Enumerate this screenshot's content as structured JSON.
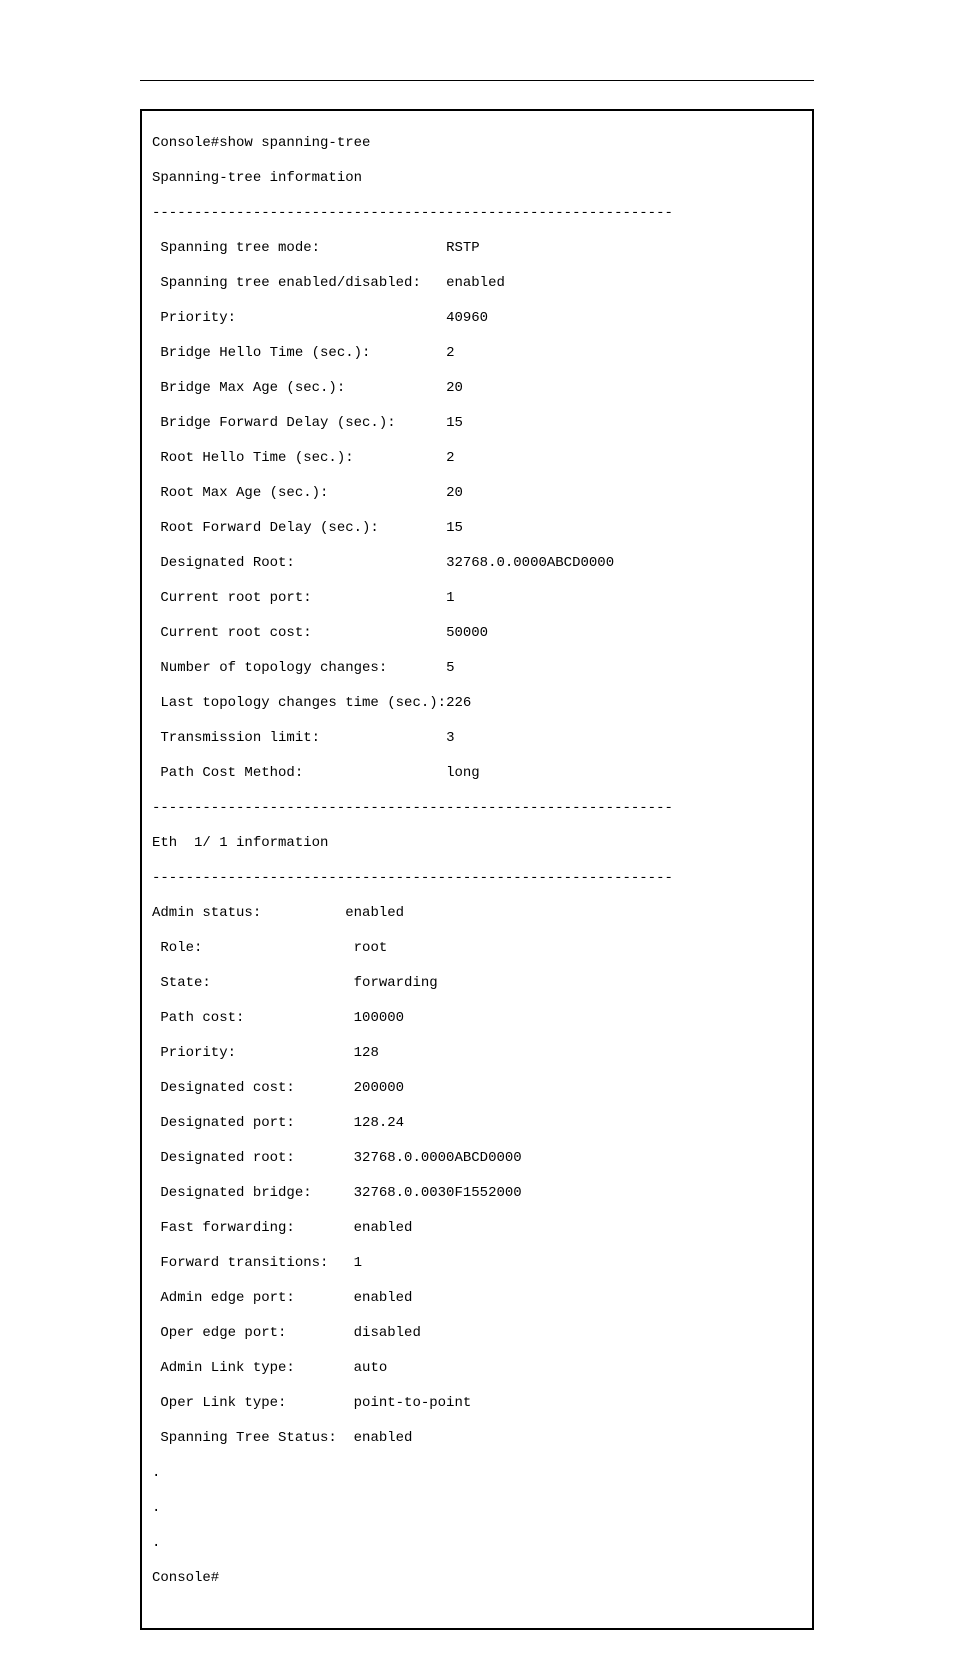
{
  "terminal": {
    "cmd_line": "Console#show spanning-tree",
    "section1_title": "Spanning-tree information",
    "divider": "--------------------------------------------------------------",
    "tree": {
      "mode_label": " Spanning tree mode:               ",
      "mode_value": "RSTP",
      "enabled_label": " Spanning tree enabled/disabled:   ",
      "enabled_value": "enabled",
      "priority_label": " Priority:                         ",
      "priority_value": "40960",
      "bhello_label": " Bridge Hello Time (sec.):         ",
      "bhello_value": "2",
      "bmax_label": " Bridge Max Age (sec.):            ",
      "bmax_value": "20",
      "bfwd_label": " Bridge Forward Delay (sec.):      ",
      "bfwd_value": "15",
      "rhello_label": " Root Hello Time (sec.):           ",
      "rhello_value": "2",
      "rmax_label": " Root Max Age (sec.):              ",
      "rmax_value": "20",
      "rfwd_label": " Root Forward Delay (sec.):        ",
      "rfwd_value": "15",
      "droot_label": " Designated Root:                  ",
      "droot_value": "32768.0.0000ABCD0000",
      "crport_label": " Current root port:                ",
      "crport_value": "1",
      "crcost_label": " Current root cost:                ",
      "crcost_value": "50000",
      "ntopo_label": " Number of topology changes:       ",
      "ntopo_value": "5",
      "ltopo_label": " Last topology changes time (sec.):",
      "ltopo_value": "226",
      "txlim_label": " Transmission limit:               ",
      "txlim_value": "3",
      "pcmeth_label": " Path Cost Method:                 ",
      "pcmeth_value": "long"
    },
    "section2_title": "Eth  1/ 1 information",
    "eth": {
      "admin_label": "Admin status:          ",
      "admin_value": "enabled",
      "role_label": " Role:                  ",
      "role_value": "root",
      "state_label": " State:                 ",
      "state_value": "forwarding",
      "pcost_label": " Path cost:             ",
      "pcost_value": "100000",
      "prio_label": " Priority:              ",
      "prio_value": "128",
      "dcost_label": " Designated cost:       ",
      "dcost_value": "200000",
      "dport_label": " Designated port:       ",
      "dport_value": "128.24",
      "droot_label": " Designated root:       ",
      "droot_value": "32768.0.0000ABCD0000",
      "dbridge_label": " Designated bridge:     ",
      "dbridge_value": "32768.0.0030F1552000",
      "ffwd_label": " Fast forwarding:       ",
      "ffwd_value": "enabled",
      "ftrans_label": " Forward transitions:   ",
      "ftrans_value": "1",
      "aedge_label": " Admin edge port:       ",
      "aedge_value": "enabled",
      "oedge_label": " Oper edge port:        ",
      "oedge_value": "disabled",
      "alink_label": " Admin Link type:       ",
      "alink_value": "auto",
      "olink_label": " Oper Link type:        ",
      "olink_value": "point-to-point",
      "status_label": " Spanning Tree Status:  ",
      "status_value": "enabled"
    },
    "ellipsis1": ".",
    "ellipsis2": ".",
    "ellipsis3": ".",
    "final_prompt": "Console#"
  }
}
